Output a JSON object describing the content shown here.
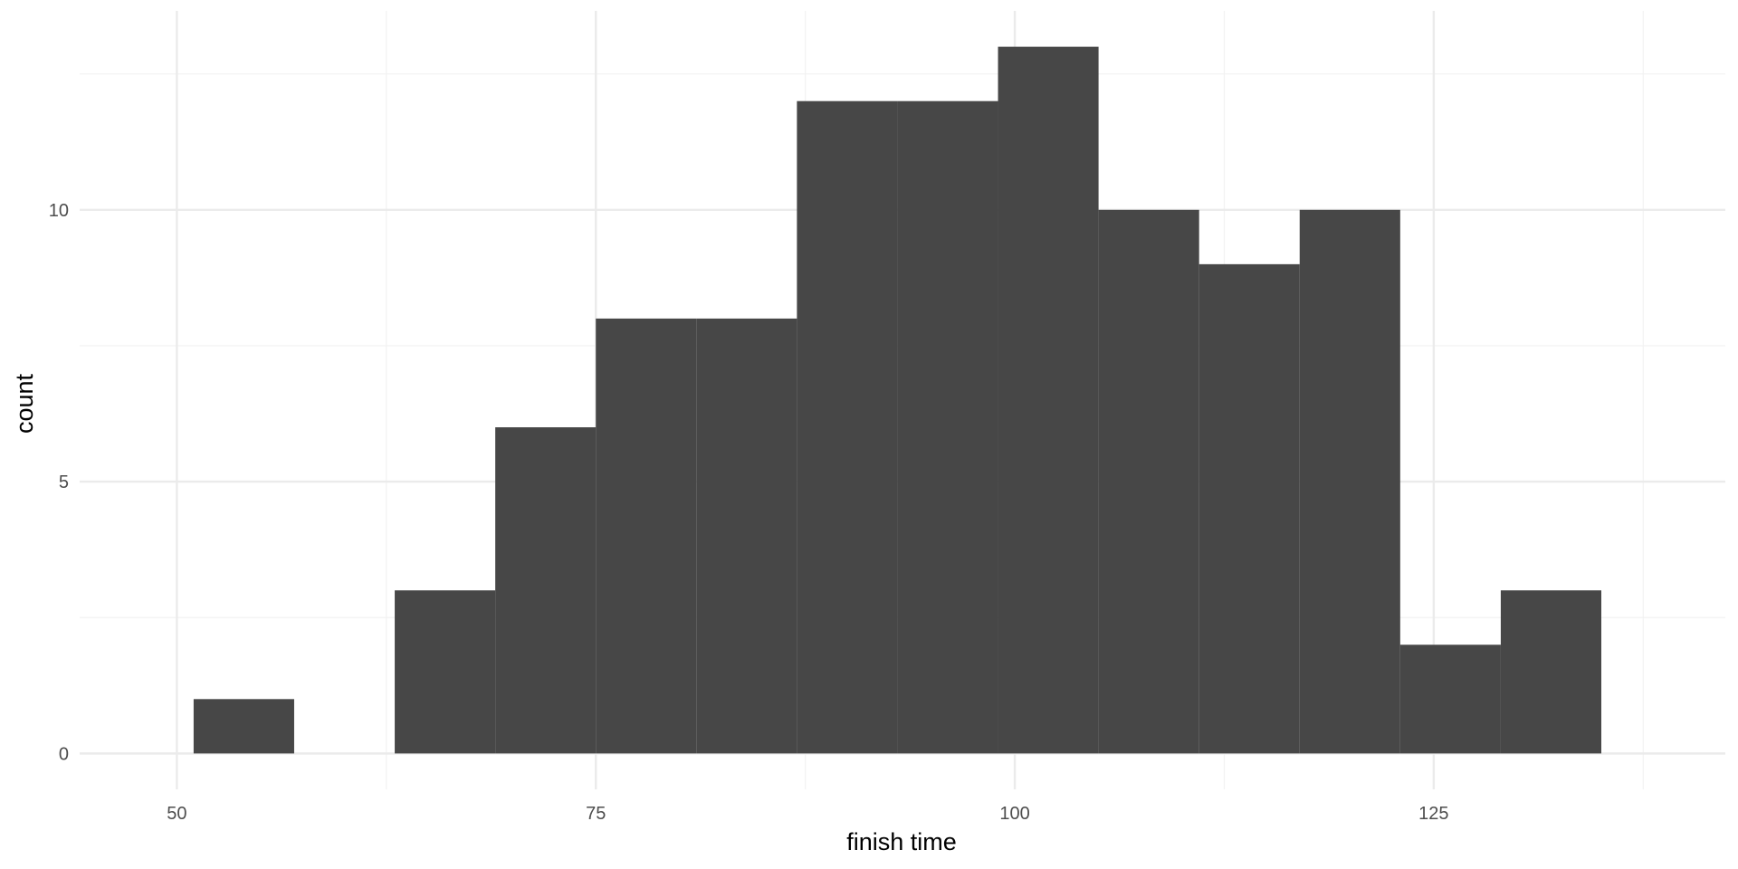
{
  "chart_data": {
    "type": "bar",
    "subtype": "histogram",
    "title": "",
    "xlabel": "finish time",
    "ylabel": "count",
    "bins": [
      {
        "x0": 51,
        "x1": 57,
        "count": 1
      },
      {
        "x0": 57,
        "x1": 63,
        "count": 0
      },
      {
        "x0": 63,
        "x1": 69,
        "count": 3
      },
      {
        "x0": 69,
        "x1": 75,
        "count": 6
      },
      {
        "x0": 75,
        "x1": 81,
        "count": 8
      },
      {
        "x0": 81,
        "x1": 87,
        "count": 8
      },
      {
        "x0": 87,
        "x1": 93,
        "count": 12
      },
      {
        "x0": 93,
        "x1": 99,
        "count": 12
      },
      {
        "x0": 99,
        "x1": 105,
        "count": 13
      },
      {
        "x0": 105,
        "x1": 111,
        "count": 10
      },
      {
        "x0": 111,
        "x1": 117,
        "count": 9
      },
      {
        "x0": 117,
        "x1": 123,
        "count": 10
      },
      {
        "x0": 123,
        "x1": 129,
        "count": 2
      },
      {
        "x0": 129,
        "x1": 135,
        "count": 3
      }
    ],
    "xlim": [
      44.2,
      142.4
    ],
    "ylim": [
      -0.66,
      13.66
    ],
    "xticks": [
      50,
      75,
      100,
      125
    ],
    "xminor": [
      62.5,
      87.5,
      112.5,
      137.5
    ],
    "yticks": [
      0,
      5,
      10
    ],
    "yminor": [
      2.5,
      7.5,
      12.5
    ],
    "grid": true,
    "legend": "none",
    "colors": {
      "bar": "#474747",
      "grid_major": "#ebebeb",
      "grid_minor": "#f2f2f2",
      "tick_text": "#4d4d4d",
      "title_text": "#000000"
    }
  }
}
